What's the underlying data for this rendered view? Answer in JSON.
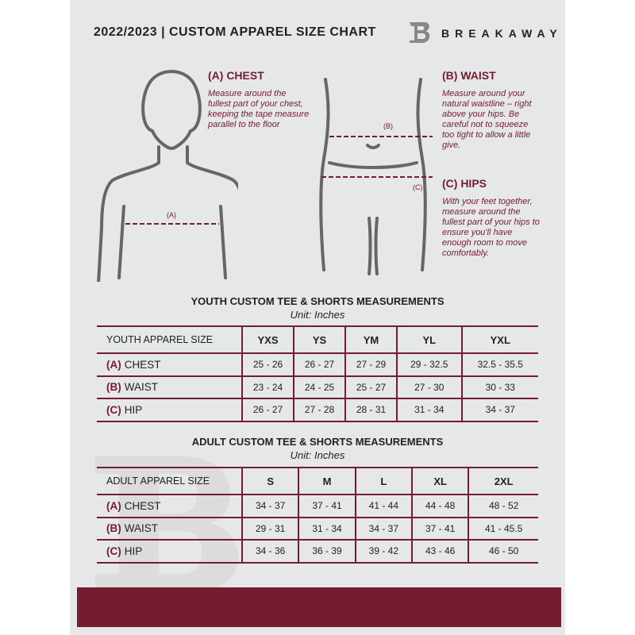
{
  "header": {
    "title": "2022/2023  |  CUSTOM APPAREL SIZE CHART",
    "brand": "BREAKAWAY"
  },
  "measures": {
    "chest": {
      "title": "(A) CHEST",
      "text": "Measure around the fullest part of your chest, keeping the tape measure parallel to the floor",
      "marker": "(A)"
    },
    "waist": {
      "title": "(B) WAIST",
      "text": "Measure around your natural waistline – right above your hips. Be careful not to squeeze too tight to allow a little give.",
      "marker": "(B)"
    },
    "hips": {
      "title": "(C) HIPS",
      "text": "With your feet together, measure around the fullest part of your hips to ensure you'll have enough room to move comfortably.",
      "marker": "(C)"
    }
  },
  "youth": {
    "title": "YOUTH CUSTOM TEE & SHORTS MEASUREMENTS",
    "unit": "Unit: Inches",
    "size_label": "YOUTH APPAREL SIZE",
    "sizes": [
      "YXS",
      "YS",
      "YM",
      "YL",
      "YXL"
    ],
    "rows": [
      {
        "key": "(A)",
        "name": "CHEST",
        "values": [
          "25 - 26",
          "26 - 27",
          "27 - 29",
          "29 - 32.5",
          "32.5 - 35.5"
        ]
      },
      {
        "key": "(B)",
        "name": "WAIST",
        "values": [
          "23 - 24",
          "24 - 25",
          "25 - 27",
          "27 - 30",
          "30 - 33"
        ]
      },
      {
        "key": "(C)",
        "name": "HIP",
        "values": [
          "26 - 27",
          "27 - 28",
          "28 - 31",
          "31 - 34",
          "34 - 37"
        ]
      }
    ]
  },
  "adult": {
    "title": "ADULT CUSTOM TEE & SHORTS MEASUREMENTS",
    "unit": "Unit: Inches",
    "size_label": "ADULT APPAREL SIZE",
    "sizes": [
      "S",
      "M",
      "L",
      "XL",
      "2XL"
    ],
    "rows": [
      {
        "key": "(A)",
        "name": "CHEST",
        "values": [
          "34 - 37",
          "37 - 41",
          "41 - 44",
          "44 - 48",
          "48 - 52"
        ]
      },
      {
        "key": "(B)",
        "name": "WAIST",
        "values": [
          "29 - 31",
          "31 - 34",
          "34 - 37",
          "37 - 41",
          "41 - 45.5"
        ]
      },
      {
        "key": "(C)",
        "name": "HIP",
        "values": [
          "34 - 36",
          "36 - 39",
          "39 - 42",
          "43 - 46",
          "46 - 50"
        ]
      }
    ]
  },
  "colors": {
    "accent": "#741c30",
    "background": "#e6e7e8"
  }
}
